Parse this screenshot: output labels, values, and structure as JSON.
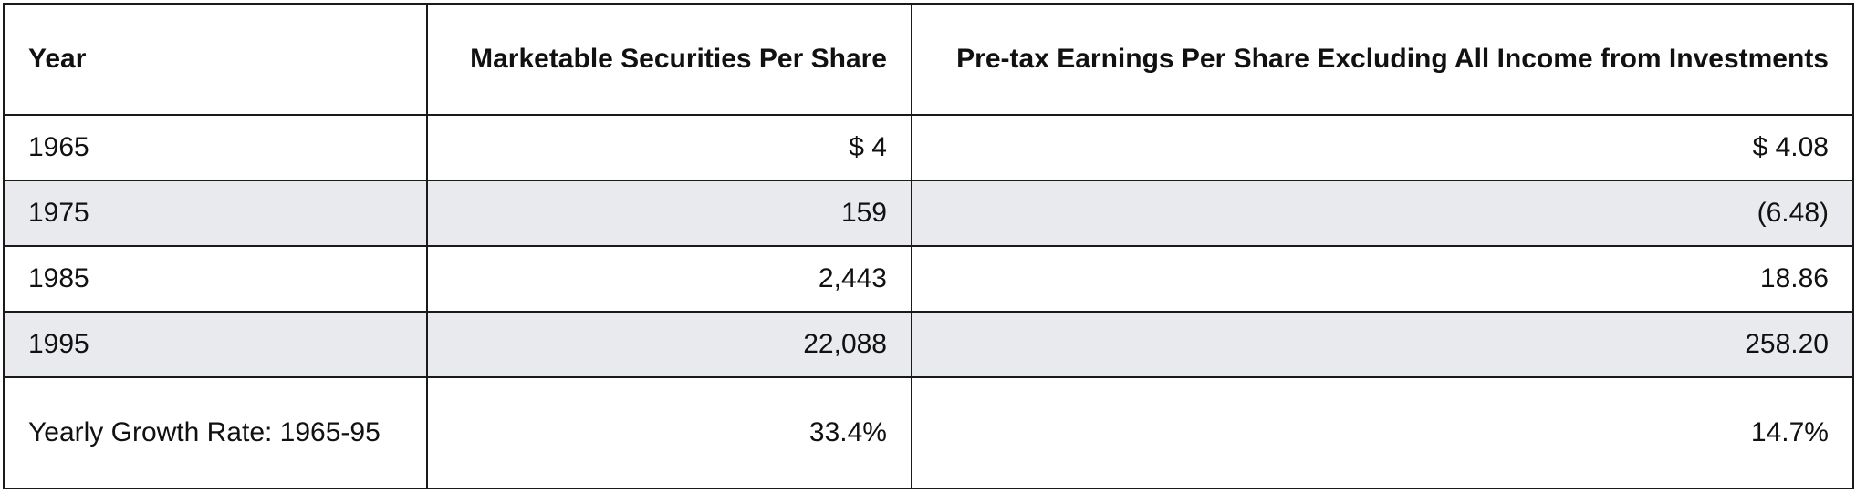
{
  "table": {
    "headers": [
      "Year",
      "Marketable Securities Per Share",
      "Pre-tax Earnings Per Share Excluding All Income from Investments"
    ],
    "rows": [
      [
        "1965",
        "$ 4",
        "$ 4.08"
      ],
      [
        "1975",
        "159",
        "(6.48)"
      ],
      [
        "1985",
        "2,443",
        "18.86"
      ],
      [
        "1995",
        "22,088",
        "258.20"
      ],
      [
        "Yearly Growth Rate: 1965-95",
        "33.4%",
        "14.7%"
      ]
    ],
    "colors": {
      "border": "#1a1a1a",
      "shaded_row": "#e8eaee",
      "background": "#ffffff"
    }
  }
}
